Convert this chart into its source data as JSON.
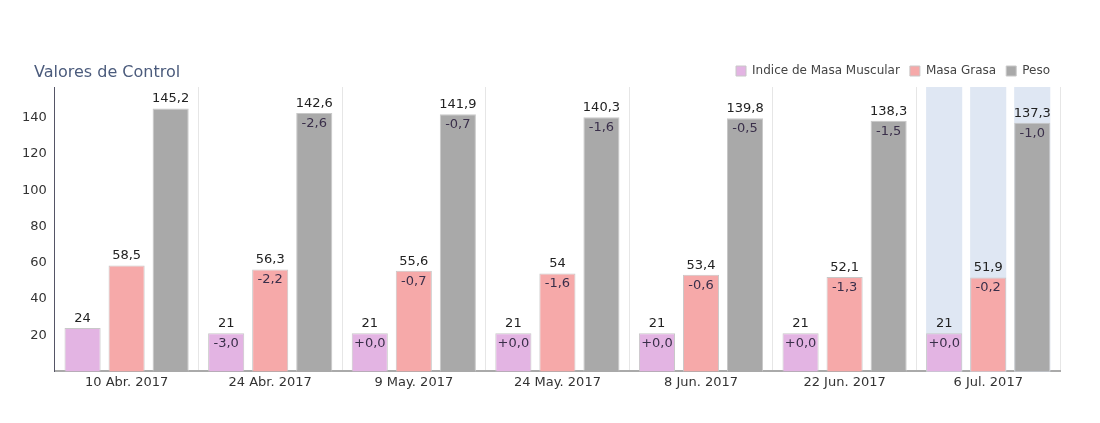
{
  "chart_data": {
    "type": "bar",
    "title": "Valores de Control",
    "categories": [
      "10 Abr. 2017",
      "24 Abr. 2017",
      "9 May. 2017",
      "24 May. 2017",
      "8 Jun. 2017",
      "22 Jun. 2017",
      "6 Jul. 2017"
    ],
    "series": [
      {
        "name": "Indice de Masa Muscular",
        "color": "#e3b4e3",
        "values": [
          24,
          21,
          21,
          21,
          21,
          21,
          21
        ],
        "value_labels": [
          "24",
          "21",
          "21",
          "21",
          "21",
          "21",
          "21"
        ]
      },
      {
        "name": "Masa Grasa",
        "color": "#f6a9a9",
        "values": [
          58.5,
          56.3,
          55.6,
          54,
          53.4,
          52.1,
          51.9
        ],
        "value_labels": [
          "58,5",
          "56,3",
          "55,6",
          "54",
          "53,4",
          "52,1",
          "51,9"
        ]
      },
      {
        "name": "Peso",
        "color": "#a9a9a9",
        "values": [
          145.2,
          142.6,
          141.9,
          140.3,
          139.8,
          138.3,
          137.3
        ],
        "value_labels": [
          "145,2",
          "142,6",
          "141,9",
          "140,3",
          "139,8",
          "138,3",
          "137,3"
        ]
      }
    ],
    "ylim": [
      0,
      157
    ],
    "yticks": [
      20,
      40,
      60,
      80,
      100,
      120,
      140
    ],
    "grid": "x",
    "legend": "top right",
    "bands": [
      {
        "axis": "x",
        "from": "6 Jul. 2017",
        "to": "6 Jul. 2017",
        "color": "#dfe7f3"
      }
    ],
    "annotations": [
      "-3,0",
      "-2,2",
      "-2,6",
      "+0,0",
      "-0,7",
      "-0,7",
      "+0,0",
      "-1,6",
      "-1,6",
      "+0,0",
      "-0,6",
      "-0,5",
      "+0,0",
      "-1,3",
      "-1,5",
      "+0,0",
      "-0,2",
      "-1,0"
    ]
  }
}
